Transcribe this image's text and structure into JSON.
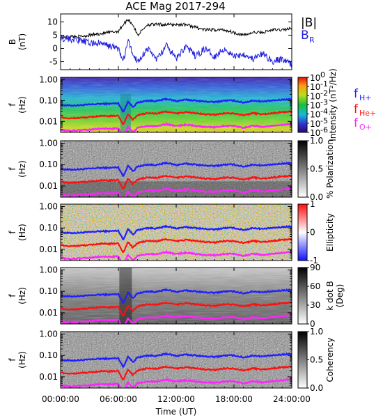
{
  "title": "ACE Mag 2017-294",
  "x_axis": {
    "label": "Time (UT)",
    "ticks": [
      "00:00:00",
      "06:00:00",
      "12:00:00",
      "18:00:00",
      "24:00:00"
    ],
    "range_hours": [
      0,
      24
    ]
  },
  "colors": {
    "fH": "#1f1fff",
    "fHe": "#ff1010",
    "fO": "#ff22ff",
    "B_total": "#000000",
    "B_R": "#2020dd"
  },
  "panels": [
    {
      "id": "field",
      "ylabel_line1": "B",
      "ylabel_line2": "(nT)",
      "yticks": [
        "10",
        "5",
        "0",
        "-5"
      ],
      "legend": [
        {
          "text": "|B|",
          "sub": "",
          "color": "#000000"
        },
        {
          "text": "B",
          "sub": "R",
          "color": "#2020dd"
        }
      ]
    },
    {
      "id": "intensity",
      "ylabel_line1": "f",
      "ylabel_line2": "(Hz)",
      "yticks": [
        "1.00",
        "0.10",
        "0.01"
      ],
      "cbar_label": "Intensity (nT²/Hz)",
      "cbar_ticks": [
        "10",
        "10",
        "10",
        "10",
        "10",
        "10",
        "10"
      ],
      "cbar_exps": [
        "0",
        "-1",
        "-2",
        "-3",
        "-4",
        "-5",
        "-6"
      ],
      "legend": [
        {
          "text": "f",
          "sub": "H+",
          "color": "#1f1fff"
        },
        {
          "text": "f",
          "sub": "He+",
          "color": "#ff1010"
        },
        {
          "text": "f",
          "sub": "O+",
          "color": "#ff22ff"
        }
      ]
    },
    {
      "id": "polarization",
      "ylabel_line1": "f",
      "ylabel_line2": "(Hz)",
      "yticks": [
        "1.00",
        "0.10",
        "0.01"
      ],
      "cbar_label": "% Polarization",
      "cbar_ticks": [
        "1.0",
        "0.5",
        "0.0"
      ]
    },
    {
      "id": "ellipticity",
      "ylabel_line1": "f",
      "ylabel_line2": "(Hz)",
      "yticks": [
        "1.00",
        "0.10",
        "0.01"
      ],
      "cbar_label": "Ellipticity",
      "cbar_ticks": [
        "1",
        "0",
        "-1"
      ]
    },
    {
      "id": "kdotb",
      "ylabel_line1": "f",
      "ylabel_line2": "(Hz)",
      "yticks": [
        "1.00",
        "0.10",
        "0.01"
      ],
      "cbar_label": "k dot B (Deg)",
      "cbar_label_line1": "k dot B",
      "cbar_label_line2": "(Deg)",
      "cbar_ticks": [
        "90",
        "60",
        "30",
        "0"
      ]
    },
    {
      "id": "coherency",
      "ylabel_line1": "f",
      "ylabel_line2": "(Hz)",
      "yticks": [
        "1.00",
        "0.10",
        "0.01"
      ],
      "cbar_label": "Coherency",
      "cbar_ticks": [
        "1.0",
        "0.5",
        "0.0"
      ]
    }
  ],
  "chart_data": {
    "type": "line",
    "title": "ACE Mag 2017-294",
    "xlabel": "Time (UT)",
    "x_units": "hours UT",
    "x": [
      0,
      1,
      2,
      3,
      4,
      5,
      6,
      6.5,
      7,
      7.5,
      8,
      9,
      10,
      11,
      12,
      13,
      14,
      15,
      16,
      17,
      18,
      19,
      20,
      21,
      22,
      23,
      24
    ],
    "field_panel": {
      "ylabel": "B (nT)",
      "ylim": [
        -8,
        13
      ],
      "series": [
        {
          "name": "|B|",
          "values": [
            4,
            4.5,
            4.5,
            5,
            5.5,
            6,
            6.5,
            9,
            11,
            9,
            5,
            9,
            9,
            9,
            9,
            9,
            8,
            7,
            7,
            7,
            6,
            5,
            6,
            6,
            7,
            7,
            7.5
          ]
        },
        {
          "name": "B_R",
          "values": [
            4,
            3.5,
            3,
            2,
            2,
            1,
            0,
            -5,
            3,
            -2,
            -5,
            0,
            -4,
            1,
            -4,
            1,
            -3,
            0,
            -3,
            0,
            -3,
            -2,
            -4,
            -2,
            -5,
            -4,
            -6
          ]
        }
      ]
    },
    "spectral_panels": {
      "ylabel": "f (Hz)",
      "yscale": "log",
      "ylim": [
        0.003,
        1.3
      ],
      "series": [
        {
          "name": "f_H+",
          "values": [
            0.062,
            0.058,
            0.06,
            0.064,
            0.07,
            0.07,
            0.075,
            0.028,
            0.09,
            0.05,
            0.08,
            0.1,
            0.095,
            0.12,
            0.095,
            0.11,
            0.1,
            0.09,
            0.085,
            0.1,
            0.1,
            0.08,
            0.1,
            0.09,
            0.1,
            0.11,
            0.12
          ]
        },
        {
          "name": "f_He+",
          "values": [
            0.016,
            0.014,
            0.015,
            0.016,
            0.018,
            0.018,
            0.019,
            0.007,
            0.022,
            0.012,
            0.02,
            0.025,
            0.024,
            0.03,
            0.024,
            0.028,
            0.025,
            0.022,
            0.021,
            0.025,
            0.025,
            0.02,
            0.025,
            0.022,
            0.025,
            0.028,
            0.03
          ]
        },
        {
          "name": "f_O+",
          "values": [
            0.004,
            0.0035,
            0.0038,
            0.004,
            0.0045,
            0.0045,
            0.0047,
            0.0018,
            0.0055,
            0.003,
            0.005,
            0.0062,
            0.006,
            0.0075,
            0.006,
            0.007,
            0.0062,
            0.0055,
            0.0053,
            0.0062,
            0.0062,
            0.005,
            0.0062,
            0.0055,
            0.0062,
            0.007,
            0.0075
          ]
        }
      ]
    }
  }
}
